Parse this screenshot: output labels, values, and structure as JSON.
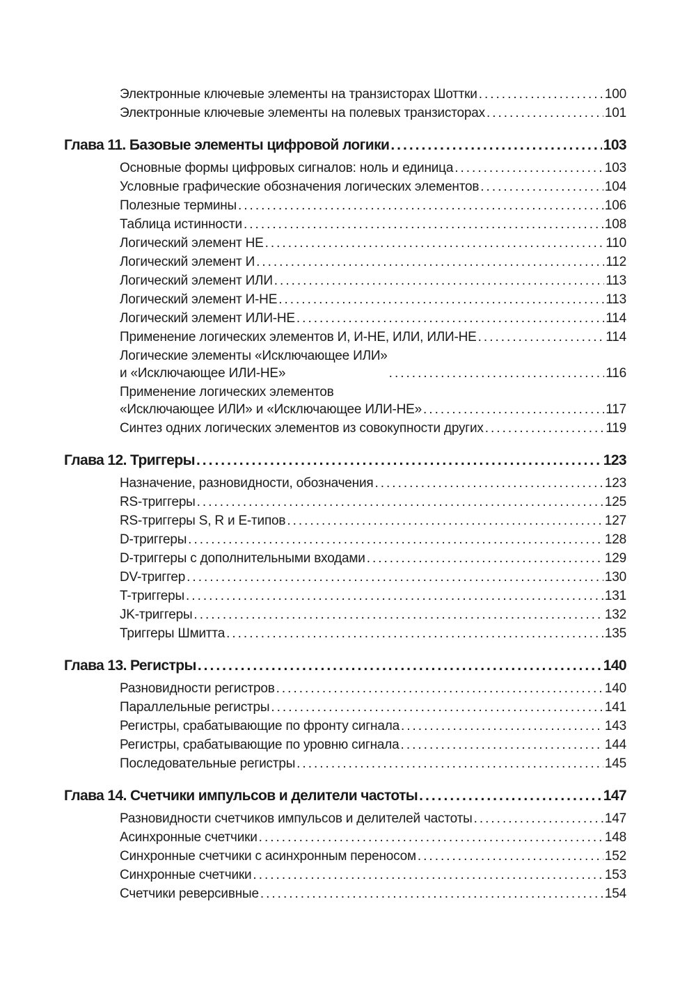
{
  "sections": [
    {
      "chapter": null,
      "entries": [
        {
          "title": "Электронные ключевые элементы на транзисторах Шоттки",
          "page": "100"
        },
        {
          "title": "Электронные ключевые элементы на полевых транзисторах",
          "page": "101"
        }
      ]
    },
    {
      "chapter": {
        "title": "Глава 11. Базовые элементы цифровой логики",
        "page": "103"
      },
      "entries": [
        {
          "title": "Основные формы цифровых сигналов: ноль и единица",
          "page": "103"
        },
        {
          "title": "Условные графические обозначения логических элементов",
          "page": "104"
        },
        {
          "title": "Полезные термины",
          "page": "106"
        },
        {
          "title": "Таблица истинности",
          "page": "108"
        },
        {
          "title": "Логический элемент НЕ",
          "page": "110"
        },
        {
          "title": "Логический элемент И",
          "page": "112"
        },
        {
          "title": "Логический элемент ИЛИ",
          "page": "113"
        },
        {
          "title": "Логический элемент И-НЕ",
          "page": "113"
        },
        {
          "title": "Логический элемент ИЛИ-НЕ",
          "page": "114"
        },
        {
          "title": "Применение логических элементов И, И-НЕ, ИЛИ, ИЛИ-НЕ",
          "page": "114"
        },
        {
          "title": "Логические элементы «Исключающее ИЛИ»\nи «Исключающее ИЛИ-НЕ»",
          "page": "116"
        },
        {
          "title": "Применение логических элементов\n«Исключающее ИЛИ» и «Исключающее ИЛИ-НЕ»",
          "page": "117"
        },
        {
          "title": "Синтез одних логических элементов из совокупности других",
          "page": "119"
        }
      ]
    },
    {
      "chapter": {
        "title": "Глава 12. Триггеры",
        "page": "123"
      },
      "entries": [
        {
          "title": "Назначение, разновидности, обозначения",
          "page": "123"
        },
        {
          "title": "RS-триггеры",
          "page": "125"
        },
        {
          "title": "RS-триггеры S, R и E-типов",
          "page": "127"
        },
        {
          "title": "D-триггеры",
          "page": "128"
        },
        {
          "title": "D-триггеры с дополнительными входами",
          "page": "129"
        },
        {
          "title": "DV-триггер",
          "page": "130"
        },
        {
          "title": "T-триггеры",
          "page": "131"
        },
        {
          "title": "JK-триггеры",
          "page": "132"
        },
        {
          "title": "Триггеры Шмитта",
          "page": "135"
        }
      ]
    },
    {
      "chapter": {
        "title": "Глава 13. Регистры",
        "page": "140"
      },
      "entries": [
        {
          "title": "Разновидности регистров",
          "page": "140"
        },
        {
          "title": "Параллельные регистры",
          "page": "141"
        },
        {
          "title": "Регистры, срабатывающие по фронту сигнала",
          "page": "143"
        },
        {
          "title": "Регистры, срабатывающие по уровню сигнала",
          "page": "144"
        },
        {
          "title": "Последовательные регистры",
          "page": "145"
        }
      ]
    },
    {
      "chapter": {
        "title": "Глава 14. Счетчики импульсов и делители частоты",
        "page": "147"
      },
      "entries": [
        {
          "title": "Разновидности счетчиков импульсов и делителей частоты",
          "page": "147"
        },
        {
          "title": "Асинхронные счетчики",
          "page": "148"
        },
        {
          "title": "Синхронные счетчики с асинхронным переносом",
          "page": "152"
        },
        {
          "title": "Синхронные счетчики",
          "page": "153"
        },
        {
          "title": "Счетчики реверсивные",
          "page": "154"
        }
      ]
    }
  ]
}
